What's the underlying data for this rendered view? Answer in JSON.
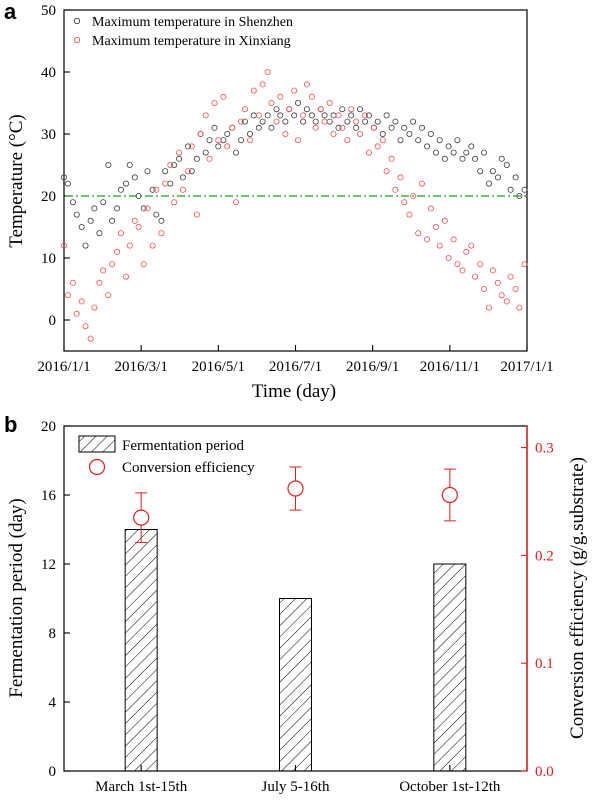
{
  "figure": {
    "panel_a_letter": "a",
    "panel_b_letter": "b"
  },
  "colors": {
    "shenzhen": "#3a3a3a",
    "xinxiang": "#f05050",
    "reference_line": "#1a9e1a",
    "right_axis": "#e02020",
    "axis": "#000000"
  },
  "chart_data": [
    {
      "id": "panel-a",
      "type": "scatter",
      "xlabel": "Time (day)",
      "ylabel": "Temperature (°C)",
      "x_ticks": [
        "2016/1/1",
        "2016/3/1",
        "2016/5/1",
        "2016/7/1",
        "2016/9/1",
        "2016/11/1",
        "2017/1/1"
      ],
      "x_range_days": [
        0,
        366
      ],
      "ylim": [
        -5,
        50
      ],
      "y_ticks": [
        0,
        10,
        20,
        30,
        40,
        50
      ],
      "legend_position": "top-left",
      "reference_line": {
        "y": 20,
        "style": "dash-dot"
      },
      "series": [
        {
          "name": "Maximum temperature in Shenzhen",
          "marker": "open-circle",
          "x": [
            0,
            3,
            7,
            10,
            14,
            17,
            21,
            24,
            28,
            31,
            35,
            38,
            42,
            45,
            49,
            52,
            56,
            59,
            63,
            66,
            70,
            73,
            77,
            80,
            84,
            87,
            91,
            94,
            98,
            101,
            105,
            108,
            112,
            115,
            119,
            122,
            126,
            129,
            133,
            136,
            140,
            143,
            147,
            150,
            154,
            157,
            161,
            164,
            168,
            171,
            175,
            178,
            182,
            185,
            189,
            192,
            196,
            199,
            203,
            206,
            210,
            213,
            217,
            220,
            224,
            227,
            231,
            234,
            238,
            241,
            245,
            248,
            252,
            255,
            259,
            262,
            266,
            269,
            273,
            276,
            280,
            283,
            287,
            290,
            294,
            297,
            301,
            304,
            308,
            311,
            315,
            318,
            322,
            325,
            329,
            332,
            336,
            339,
            343,
            346,
            350,
            353,
            357,
            360,
            364
          ],
          "y": [
            23,
            22,
            19,
            17,
            15,
            12,
            16,
            18,
            14,
            19,
            25,
            16,
            18,
            21,
            22,
            25,
            23,
            20,
            18,
            24,
            21,
            17,
            16,
            24,
            22,
            25,
            26,
            23,
            28,
            24,
            26,
            30,
            27,
            29,
            31,
            28,
            29,
            30,
            31,
            27,
            29,
            32,
            30,
            33,
            31,
            32,
            33,
            31,
            34,
            33,
            32,
            34,
            33,
            35,
            32,
            34,
            33,
            32,
            34,
            33,
            32,
            33,
            31,
            34,
            32,
            33,
            31,
            34,
            32,
            33,
            31,
            32,
            30,
            33,
            31,
            32,
            29,
            31,
            30,
            32,
            29,
            31,
            28,
            30,
            27,
            29,
            26,
            28,
            27,
            29,
            26,
            27,
            28,
            26,
            24,
            27,
            22,
            24,
            23,
            26,
            25,
            21,
            23,
            20,
            21
          ]
        },
        {
          "name": "Maximum temperature in Xinxiang",
          "marker": "open-circle",
          "x": [
            0,
            3,
            7,
            10,
            14,
            17,
            21,
            24,
            28,
            31,
            35,
            38,
            42,
            45,
            49,
            52,
            56,
            59,
            63,
            66,
            70,
            73,
            77,
            80,
            84,
            87,
            91,
            94,
            98,
            101,
            105,
            108,
            112,
            115,
            119,
            122,
            126,
            129,
            133,
            136,
            140,
            143,
            147,
            150,
            154,
            157,
            161,
            164,
            168,
            171,
            175,
            178,
            182,
            185,
            189,
            192,
            196,
            199,
            203,
            206,
            210,
            213,
            217,
            220,
            224,
            227,
            231,
            234,
            238,
            241,
            245,
            248,
            252,
            255,
            259,
            262,
            266,
            269,
            273,
            276,
            280,
            283,
            287,
            290,
            294,
            297,
            301,
            304,
            308,
            311,
            315,
            318,
            322,
            325,
            329,
            332,
            336,
            339,
            343,
            346,
            350,
            353,
            357,
            360,
            364
          ],
          "y": [
            12,
            4,
            6,
            1,
            3,
            -1,
            -3,
            2,
            6,
            8,
            4,
            9,
            11,
            14,
            7,
            12,
            16,
            15,
            9,
            18,
            12,
            21,
            14,
            22,
            25,
            19,
            27,
            21,
            24,
            28,
            17,
            30,
            33,
            26,
            35,
            29,
            36,
            28,
            31,
            19,
            32,
            34,
            29,
            37,
            33,
            38,
            40,
            35,
            32,
            36,
            30,
            34,
            37,
            29,
            33,
            38,
            36,
            31,
            34,
            32,
            35,
            30,
            33,
            31,
            29,
            34,
            32,
            30,
            33,
            27,
            31,
            28,
            29,
            24,
            26,
            21,
            23,
            19,
            17,
            20,
            14,
            22,
            13,
            18,
            15,
            12,
            16,
            10,
            13,
            9,
            8,
            11,
            12,
            7,
            9,
            5,
            2,
            8,
            6,
            4,
            3,
            7,
            5,
            2,
            9
          ]
        }
      ]
    },
    {
      "id": "panel-b",
      "type": "bar",
      "categories": [
        "March 1st-15th",
        "July 5-16th",
        "October 1st-12th"
      ],
      "ylabel": "Fermentation period (day)",
      "ylim": [
        0,
        20
      ],
      "y_ticks": [
        0,
        4,
        8,
        12,
        16,
        20
      ],
      "y2label": "Conversion efficiency (g/g.substrate)",
      "y2lim": [
        0,
        0.32
      ],
      "y2_ticks": [
        "0.0",
        "0.1",
        "0.2",
        "0.3"
      ],
      "legend_position": "top-left",
      "series": [
        {
          "name": "Fermentation period",
          "axis": "left",
          "style": "hatched-bar",
          "values": [
            14,
            10,
            12
          ]
        },
        {
          "name": "Conversion efficiency",
          "axis": "right",
          "style": "open-circle-errorbar",
          "values": [
            0.235,
            0.262,
            0.256
          ],
          "errors": [
            0.023,
            0.02,
            0.024
          ]
        }
      ]
    }
  ]
}
